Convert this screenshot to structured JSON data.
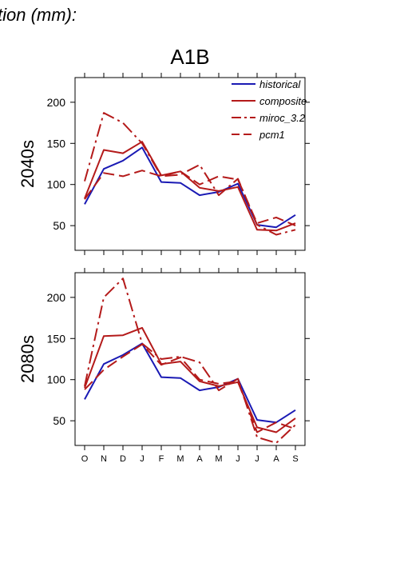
{
  "header": {
    "title": "tion (mm):",
    "scenario": "A1B"
  },
  "chart_data": {
    "type": "line",
    "categories": [
      "O",
      "N",
      "D",
      "J",
      "F",
      "M",
      "A",
      "M",
      "J",
      "J",
      "A",
      "S"
    ],
    "ylim": [
      20,
      230
    ],
    "yticks": [
      50,
      100,
      150,
      200
    ],
    "legend_position": "top-right",
    "colors": {
      "historical": "#1a1ab4",
      "projection": "#b41a1a"
    },
    "legend": [
      {
        "name": "historical",
        "dash": "solid",
        "color": "#1a1ab4"
      },
      {
        "name": "composite",
        "dash": "solid",
        "color": "#b41a1a"
      },
      {
        "name": "miroc_3.2",
        "dash": "dashdot",
        "color": "#b41a1a"
      },
      {
        "name": "pcm1",
        "dash": "dashed",
        "color": "#b41a1a"
      }
    ],
    "panels": [
      {
        "label": "2040s",
        "series": [
          {
            "name": "historical",
            "values": [
              76,
              119,
              129,
              145,
              103,
              102,
              87,
              91,
              101,
              51,
              48,
              63
            ]
          },
          {
            "name": "composite",
            "values": [
              83,
              142,
              138,
              152,
              111,
              116,
              96,
              92,
              97,
              45,
              44,
              53
            ]
          },
          {
            "name": "miroc_3.2",
            "values": [
              104,
              187,
              175,
              150,
              110,
              112,
              124,
              87,
              107,
              51,
              39,
              45
            ]
          },
          {
            "name": "pcm1",
            "values": [
              82,
              114,
              110,
              117,
              110,
              116,
              100,
              110,
              106,
              53,
              60,
              50
            ]
          }
        ]
      },
      {
        "label": "2080s",
        "series": [
          {
            "name": "historical",
            "values": [
              76,
              119,
              130,
              144,
              103,
              102,
              87,
              91,
              101,
              51,
              48,
              63
            ]
          },
          {
            "name": "composite",
            "values": [
              90,
              153,
              154,
              163,
              119,
              122,
              98,
              92,
              97,
              42,
              36,
              53
            ]
          },
          {
            "name": "miroc_3.2",
            "values": [
              92,
              200,
              223,
              144,
              125,
              128,
              121,
              87,
              101,
              30,
              23,
              45
            ]
          },
          {
            "name": "pcm1",
            "values": [
              88,
              112,
              128,
              143,
              118,
              127,
              100,
              95,
              98,
              36,
              48,
              40
            ]
          }
        ]
      }
    ]
  }
}
